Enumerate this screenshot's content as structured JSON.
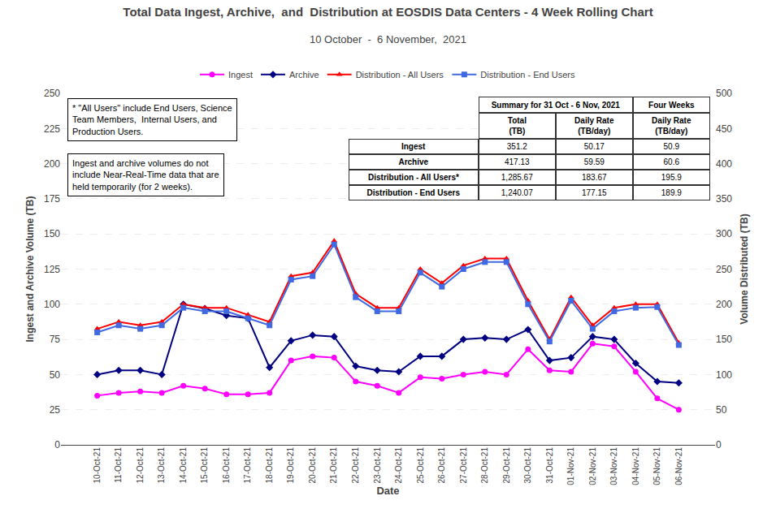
{
  "chart_data": {
    "type": "line",
    "title": "Total Data Ingest, Archive,  and  Distribution at EOSDIS Data Centers - 4 Week Rolling Chart",
    "subtitle": "10 October  -  6 November,  2021",
    "xlabel": "Date",
    "ylabel": "Ingest and Archive Volume (TB)",
    "y2label": "Volume Distributed (TB)",
    "categories": [
      "10-Oct-21",
      "11-Oct-21",
      "12-Oct-21",
      "13-Oct-21",
      "14-Oct-21",
      "15-Oct-21",
      "16-Oct-21",
      "17-Oct-21",
      "18-Oct-21",
      "19-Oct-21",
      "20-Oct-21",
      "21-Oct-21",
      "22-Oct-21",
      "23-Oct-21",
      "24-Oct-21",
      "25-Oct-21",
      "26-Oct-21",
      "27-Oct-21",
      "28-Oct-21",
      "29-Oct-21",
      "30-Oct-21",
      "31-Oct-21",
      "01-Nov-21",
      "02-Nov-21",
      "03-Nov-21",
      "04-Nov-21",
      "05-Nov-21",
      "06-Nov-21"
    ],
    "series": [
      {
        "name": "Ingest",
        "color": "#FF00FF",
        "marker": "circle",
        "values": [
          35,
          37,
          38,
          37,
          42,
          40,
          36,
          36,
          37,
          60,
          63,
          62,
          45,
          42,
          37,
          48,
          47,
          50,
          52,
          50,
          68,
          53,
          52,
          72,
          70,
          52,
          33,
          25
        ]
      },
      {
        "name": "Archive",
        "color": "#000080",
        "marker": "diamond",
        "values": [
          50,
          53,
          53,
          50,
          100,
          97,
          92,
          90,
          55,
          74,
          78,
          77,
          56,
          53,
          52,
          63,
          63,
          75,
          76,
          75,
          82,
          60,
          62,
          77,
          75,
          58,
          45,
          44
        ]
      },
      {
        "name": "Distribution - All Users",
        "color": "#FF0000",
        "marker": "triangle-up",
        "axis": "y2",
        "values": [
          165,
          175,
          170,
          175,
          200,
          195,
          195,
          185,
          175,
          240,
          245,
          290,
          215,
          195,
          195,
          250,
          230,
          255,
          265,
          265,
          205,
          150,
          210,
          170,
          195,
          200,
          200,
          145
        ]
      },
      {
        "name": "Distribution - End Users",
        "color": "#4169E1",
        "marker": "square",
        "axis": "y2",
        "values": [
          160,
          170,
          165,
          170,
          195,
          190,
          190,
          180,
          170,
          235,
          240,
          285,
          210,
          190,
          190,
          245,
          225,
          250,
          260,
          260,
          200,
          147,
          205,
          165,
          190,
          195,
          196,
          142
        ]
      }
    ],
    "ylim": [
      0,
      250
    ],
    "yticks": [
      0,
      25,
      50,
      75,
      100,
      125,
      150,
      175,
      200,
      225,
      250
    ],
    "y2lim": [
      0,
      500
    ],
    "y2ticks": [
      0,
      50,
      100,
      150,
      200,
      250,
      300,
      350,
      400,
      450,
      500
    ],
    "grid": true,
    "legend": "top",
    "annotations": [
      "* \"All Users\" include End Users, Science\nTeam Members,  Internal Users, and\nProduction Users.",
      "Ingest and archive volumes do not\ninclude Near-Real-Time data that are\nheld temporarily (for 2 weeks)."
    ],
    "table": {
      "title": "Summary for 31 Oct - 6 Nov, 2021",
      "last_column_title": "Four Weeks",
      "columns": [
        "Total\n(TB)",
        "Daily Rate\n(TB/day)",
        "Daily Rate\n(TB/day)"
      ],
      "rows": [
        {
          "label": "Ingest",
          "values": [
            "351.2",
            "50.17",
            "50.9"
          ]
        },
        {
          "label": "Archive",
          "values": [
            "417.13",
            "59.59",
            "60.6"
          ]
        },
        {
          "label": "Distribution - All Users*",
          "values": [
            "1,285.67",
            "183.67",
            "195.9"
          ]
        },
        {
          "label": "Distribution - End Users",
          "values": [
            "1,240.07",
            "177.15",
            "189.9"
          ]
        }
      ]
    }
  }
}
